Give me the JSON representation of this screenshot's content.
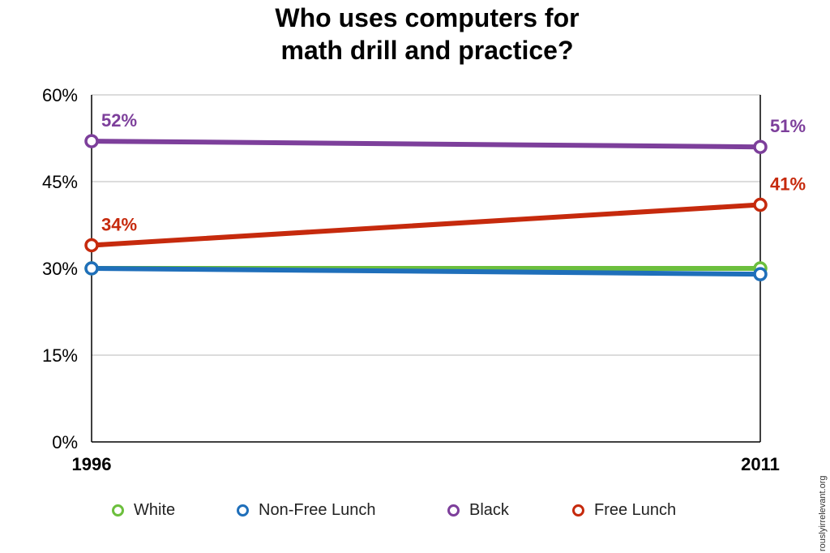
{
  "chart_data": {
    "type": "line",
    "title": [
      "Who uses computers for",
      "math drill and practice?"
    ],
    "x": [
      "1996",
      "2011"
    ],
    "ylim": [
      0,
      60
    ],
    "yticks": [
      "0%",
      "15%",
      "30%",
      "45%",
      "60%"
    ],
    "ytick_values": [
      0,
      15,
      30,
      45,
      60
    ],
    "grid": true,
    "legend_position": "bottom",
    "series": [
      {
        "name": "White",
        "values": [
          30,
          30
        ],
        "color": "#6cbf3d",
        "labels": [
          "",
          ""
        ]
      },
      {
        "name": "Non-Free Lunch",
        "values": [
          30,
          29
        ],
        "color": "#1f6fba",
        "labels": [
          "",
          ""
        ]
      },
      {
        "name": "Black",
        "values": [
          52,
          51
        ],
        "color": "#7d3f9b",
        "labels": [
          "52%",
          "51%"
        ]
      },
      {
        "name": "Free Lunch",
        "values": [
          34,
          41
        ],
        "color": "#c62a0d",
        "labels": [
          "34%",
          "41%"
        ]
      }
    ]
  },
  "watermark": "rouslyirrelevant.org"
}
